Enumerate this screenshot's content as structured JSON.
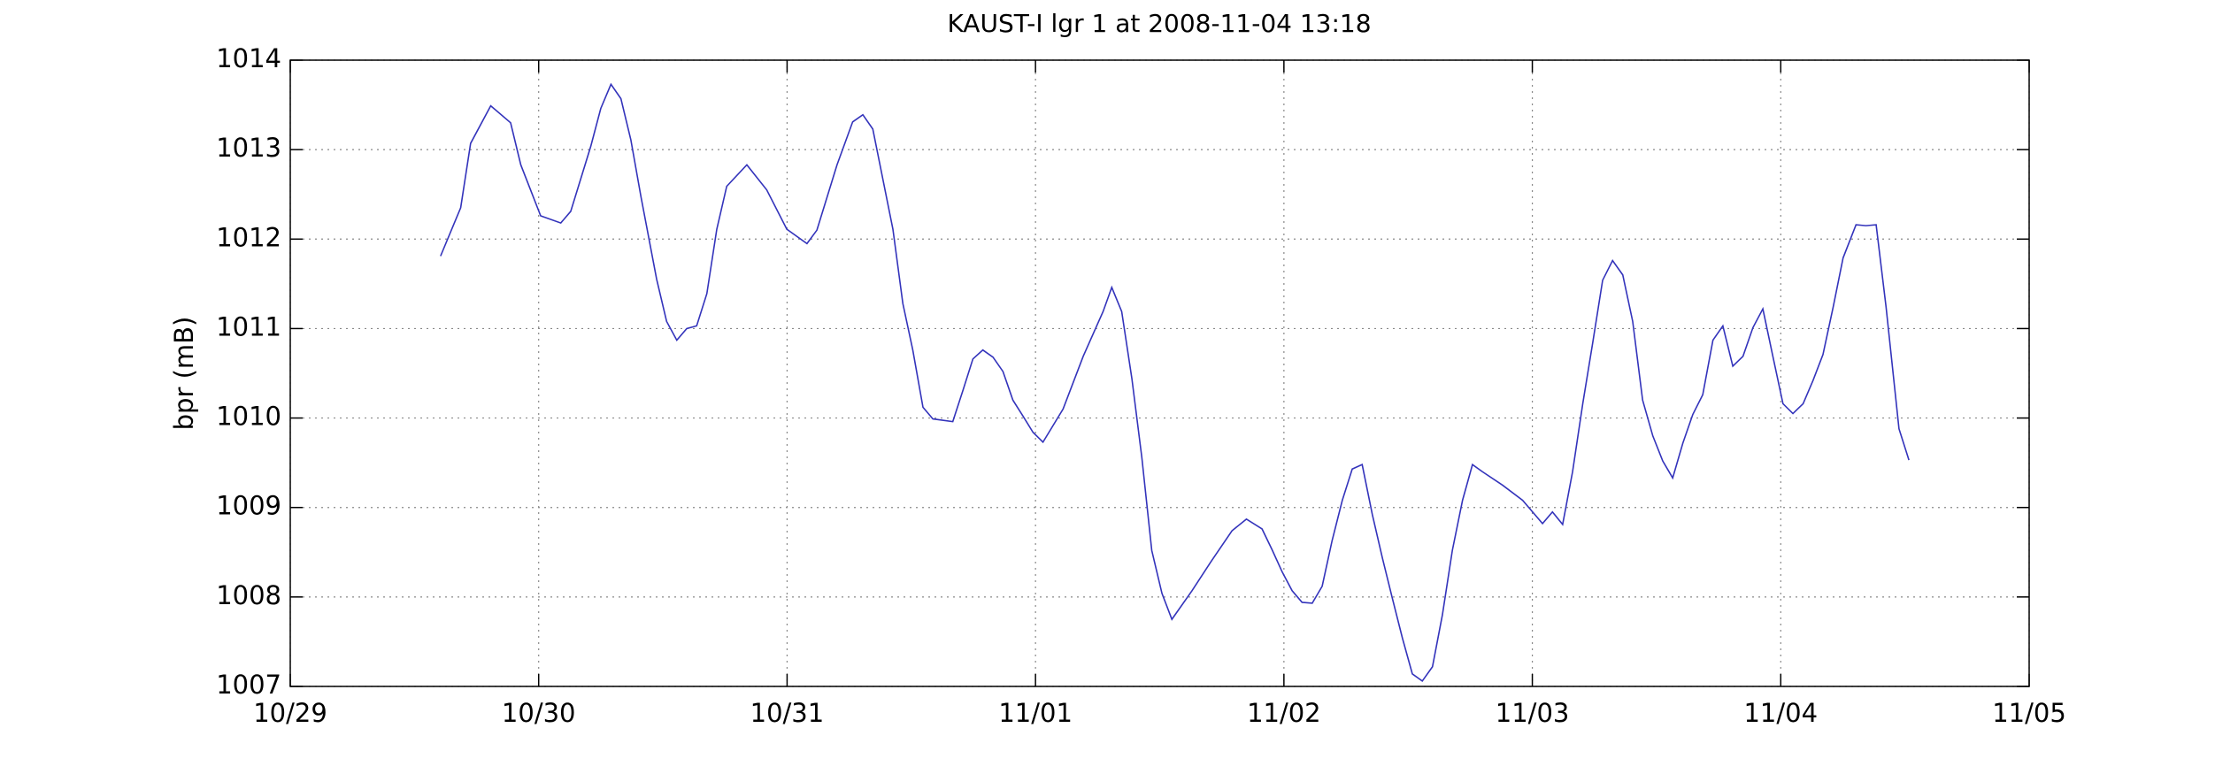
{
  "chart_data": {
    "type": "line",
    "title": "KAUST-I lgr 1 at 2008-11-04 13:18",
    "ylabel": "bpr (mB)",
    "xlim": [
      0,
      7
    ],
    "xticks": [
      {
        "value": 0,
        "label": "10/29"
      },
      {
        "value": 1,
        "label": "10/30"
      },
      {
        "value": 2,
        "label": "10/31"
      },
      {
        "value": 3,
        "label": "11/01"
      },
      {
        "value": 4,
        "label": "11/02"
      },
      {
        "value": 5,
        "label": "11/03"
      },
      {
        "value": 6,
        "label": "11/04"
      },
      {
        "value": 7,
        "label": "11/05"
      }
    ],
    "ylim": [
      1007,
      1014
    ],
    "yticks": [
      1007,
      1008,
      1009,
      1010,
      1011,
      1012,
      1013,
      1014
    ],
    "grid": true,
    "series": [
      {
        "name": "bpr",
        "color": "#3333bb",
        "x": [
          0.605,
          0.686,
          0.726,
          0.807,
          0.887,
          0.928,
          1.008,
          1.089,
          1.129,
          1.21,
          1.25,
          1.291,
          1.331,
          1.371,
          1.412,
          1.475,
          1.515,
          1.556,
          1.596,
          1.636,
          1.677,
          1.717,
          1.757,
          1.838,
          1.918,
          1.999,
          2.08,
          2.12,
          2.201,
          2.264,
          2.305,
          2.345,
          2.426,
          2.466,
          2.506,
          2.547,
          2.587,
          2.667,
          2.708,
          2.748,
          2.788,
          2.829,
          2.869,
          2.909,
          2.95,
          2.99,
          3.03,
          3.111,
          3.192,
          3.272,
          3.307,
          3.347,
          3.388,
          3.428,
          3.468,
          3.509,
          3.549,
          3.63,
          3.71,
          3.791,
          3.849,
          3.912,
          3.952,
          3.993,
          4.033,
          4.073,
          4.114,
          4.154,
          4.194,
          4.235,
          4.275,
          4.315,
          4.356,
          4.396,
          4.436,
          4.477,
          4.517,
          4.557,
          4.598,
          4.638,
          4.678,
          4.719,
          4.759,
          4.799,
          4.88,
          4.961,
          5.001,
          5.041,
          5.081,
          5.122,
          5.162,
          5.203,
          5.243,
          5.283,
          5.323,
          5.364,
          5.404,
          5.444,
          5.485,
          5.525,
          5.565,
          5.606,
          5.646,
          5.686,
          5.727,
          5.767,
          5.807,
          5.848,
          5.888,
          5.928,
          5.969,
          6.009,
          6.049,
          6.09,
          6.13,
          6.17,
          6.211,
          6.251,
          6.303,
          6.343,
          6.384,
          6.424,
          6.476,
          6.516
        ],
        "values": [
          1011.81,
          1012.35,
          1013.07,
          1013.49,
          1013.3,
          1012.83,
          1012.26,
          1012.18,
          1012.31,
          1013.04,
          1013.46,
          1013.73,
          1013.57,
          1013.11,
          1012.47,
          1011.55,
          1011.08,
          1010.87,
          1011.0,
          1011.03,
          1011.39,
          1012.11,
          1012.59,
          1012.83,
          1012.55,
          1012.11,
          1011.95,
          1012.1,
          1012.83,
          1013.31,
          1013.39,
          1013.23,
          1012.11,
          1011.28,
          1010.76,
          1010.12,
          1009.99,
          1009.96,
          1010.31,
          1010.66,
          1010.76,
          1010.68,
          1010.52,
          1010.2,
          1010.02,
          1009.84,
          1009.73,
          1010.1,
          1010.69,
          1011.19,
          1011.46,
          1011.19,
          1010.44,
          1009.56,
          1008.52,
          1008.04,
          1007.75,
          1008.07,
          1008.41,
          1008.74,
          1008.87,
          1008.76,
          1008.53,
          1008.28,
          1008.07,
          1007.94,
          1007.93,
          1008.12,
          1008.63,
          1009.08,
          1009.43,
          1009.48,
          1008.92,
          1008.44,
          1007.99,
          1007.54,
          1007.14,
          1007.06,
          1007.22,
          1007.8,
          1008.52,
          1009.08,
          1009.48,
          1009.4,
          1009.25,
          1009.08,
          1008.95,
          1008.82,
          1008.95,
          1008.81,
          1009.4,
          1010.16,
          1010.84,
          1011.54,
          1011.76,
          1011.6,
          1011.08,
          1010.2,
          1009.8,
          1009.52,
          1009.33,
          1009.72,
          1010.04,
          1010.26,
          1010.87,
          1011.03,
          1010.58,
          1010.69,
          1011.01,
          1011.22,
          1010.68,
          1010.16,
          1010.05,
          1010.16,
          1010.42,
          1010.71,
          1011.24,
          1011.79,
          1012.16,
          1012.15,
          1012.16,
          1011.24,
          1009.88,
          1009.53
        ]
      }
    ]
  }
}
